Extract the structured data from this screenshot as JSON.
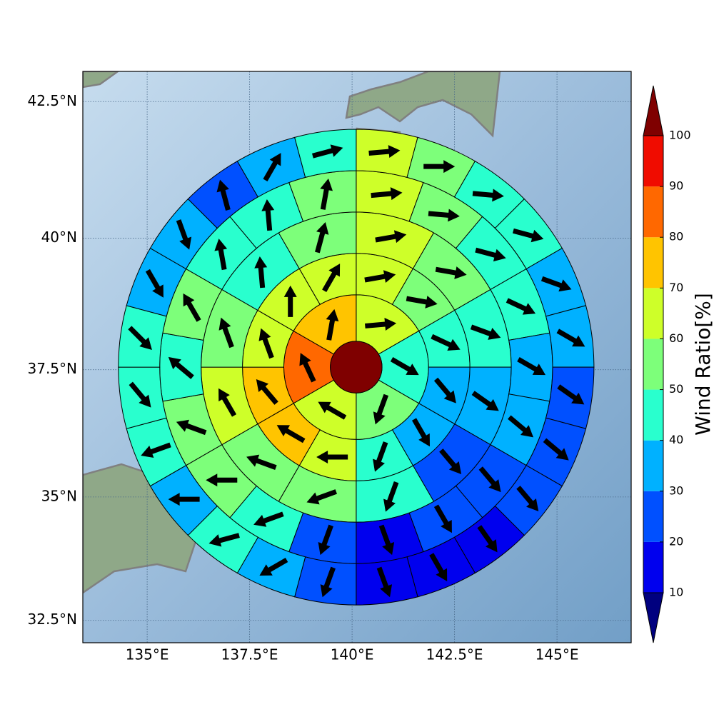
{
  "map": {
    "projection": "mercator",
    "xlim": [
      133.43,
      146.81
    ],
    "ylim": [
      32.04,
      43.04
    ],
    "xticks": [
      {
        "value": 135,
        "label": "135°E"
      },
      {
        "value": 137.5,
        "label": "137.5°E"
      },
      {
        "value": 140,
        "label": "140°E"
      },
      {
        "value": 142.5,
        "label": "142.5°E"
      },
      {
        "value": 145,
        "label": "145°E"
      }
    ],
    "yticks": [
      {
        "value": 32.5,
        "label": "32.5°N"
      },
      {
        "value": 35,
        "label": "35°N"
      },
      {
        "value": 37.5,
        "label": "37.5°N"
      },
      {
        "value": 40,
        "label": "40°N"
      },
      {
        "value": 42.5,
        "label": "42.5°N"
      }
    ],
    "grid": true,
    "center": {
      "lon": 140.1,
      "lat": 37.55,
      "value": 105
    },
    "ring_edges_deg": [
      0.5,
      1.4,
      2.2,
      3.0,
      3.8,
      4.6
    ],
    "rings": [
      {
        "values": [
          65,
          45,
          55,
          65,
          85,
          75
        ],
        "wind_dir": [
          85,
          120,
          200,
          300,
          335,
          10
        ]
      },
      {
        "values": [
          65,
          55,
          45,
          35,
          35,
          45,
          65,
          75,
          75,
          65,
          65,
          65
        ],
        "wind_dir": [
          80,
          100,
          115,
          140,
          150,
          200,
          270,
          300,
          320,
          340,
          0,
          30
        ]
      },
      {
        "values": [
          65,
          55,
          45,
          35,
          25,
          45,
          55,
          55,
          65,
          55,
          45,
          55
        ],
        "wind_dir": [
          80,
          100,
          110,
          125,
          140,
          200,
          250,
          290,
          330,
          340,
          355,
          15
        ]
      },
      {
        "values": [
          65,
          55,
          45,
          45,
          35,
          35,
          25,
          25,
          15,
          25,
          45,
          55,
          55,
          45,
          55,
          45,
          45,
          55
        ],
        "wind_dir": [
          85,
          95,
          105,
          115,
          120,
          130,
          140,
          150,
          160,
          200,
          250,
          270,
          290,
          310,
          330,
          350,
          355,
          10
        ]
      },
      {
        "values": [
          65,
          55,
          45,
          45,
          35,
          35,
          25,
          25,
          25,
          15,
          15,
          15,
          25,
          35,
          45,
          35,
          45,
          45,
          45,
          35,
          35,
          25,
          35,
          45
        ],
        "wind_dir": [
          85,
          90,
          95,
          105,
          110,
          120,
          125,
          130,
          140,
          145,
          150,
          160,
          200,
          240,
          255,
          270,
          250,
          140,
          135,
          150,
          160,
          345,
          30,
          75
        ]
      }
    ],
    "colorbar": {
      "label": "Wind Ratio[%]",
      "levels": [
        10,
        20,
        30,
        40,
        50,
        60,
        70,
        80,
        90,
        100
      ],
      "colors": [
        "#00007f",
        "#0000ee",
        "#0050ff",
        "#00b1ff",
        "#29ffce",
        "#7dff7a",
        "#ceff29",
        "#ffc400",
        "#ff6800",
        "#f00c00",
        "#7f0000"
      ]
    }
  }
}
